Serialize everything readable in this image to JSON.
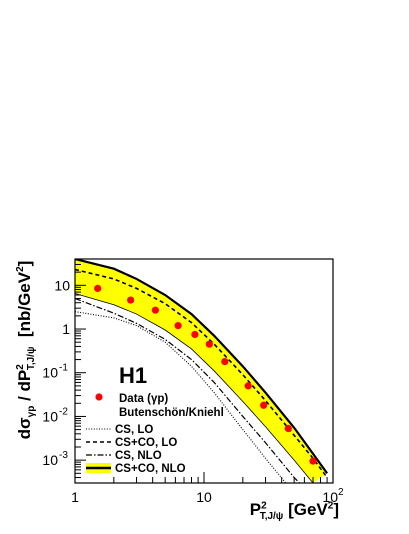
{
  "chart_data": {
    "type": "line",
    "xscale": "log",
    "yscale": "log",
    "xlim": [
      1,
      100
    ],
    "ylim": [
      0.0003,
      40
    ],
    "xticks": [
      {
        "value": 1,
        "label": "1"
      },
      {
        "value": 10,
        "label": "10"
      },
      {
        "value": 100,
        "label": "10",
        "sup": "2"
      }
    ],
    "yticks": [
      {
        "value": 0.001,
        "label": "10",
        "sup": "-3"
      },
      {
        "value": 0.01,
        "label": "10",
        "sup": "-2"
      },
      {
        "value": 0.1,
        "label": "10",
        "sup": "-1"
      },
      {
        "value": 1,
        "label": "1"
      },
      {
        "value": 10,
        "label": "10"
      }
    ],
    "xlabel": {
      "main": "P",
      "sup": "2",
      "sub": "T,J/ψ",
      "unit": "[GeV",
      "unit_sup": "2",
      "unit_end": "]"
    },
    "ylabel": {
      "main": "dσ",
      "sub1": "γp",
      "mid": " / dP",
      "sup": "2",
      "sub2": "T,J/ψ",
      "unit": "  [nb/GeV",
      "unit_sup": "2",
      "unit_end": "]"
    },
    "experiment_label": "H1",
    "legend": {
      "data_label": "Data (γp)",
      "theory_header": "Butenschön/Kniehl",
      "entries": [
        "CS, LO",
        "CS+CO, LO",
        "CS, NLO",
        "CS+CO, NLO"
      ]
    },
    "colors": {
      "band": "#ffff00",
      "marker": "#ff0000",
      "line": "#000000"
    },
    "data_points": [
      {
        "x": 1.5,
        "y": 8.5
      },
      {
        "x": 2.7,
        "y": 4.6
      },
      {
        "x": 4.2,
        "y": 2.7
      },
      {
        "x": 6.3,
        "y": 1.2
      },
      {
        "x": 8.5,
        "y": 0.75
      },
      {
        "x": 11,
        "y": 0.45
      },
      {
        "x": 14.5,
        "y": 0.18
      },
      {
        "x": 22,
        "y": 0.05
      },
      {
        "x": 29,
        "y": 0.018
      },
      {
        "x": 45,
        "y": 0.0053
      },
      {
        "x": 70,
        "y": 0.00095
      }
    ],
    "curves": {
      "band_upper": [
        [
          1,
          40
        ],
        [
          2,
          24
        ],
        [
          3,
          14
        ],
        [
          5,
          6
        ],
        [
          8,
          2.2
        ],
        [
          12,
          0.7
        ],
        [
          20,
          0.14
        ],
        [
          30,
          0.035
        ],
        [
          50,
          0.0055
        ],
        [
          70,
          0.0014
        ],
        [
          90,
          0.0005
        ]
      ],
      "band_lower": [
        [
          1,
          6.5
        ],
        [
          2,
          3.6
        ],
        [
          3,
          2.2
        ],
        [
          5,
          0.95
        ],
        [
          8,
          0.35
        ],
        [
          12,
          0.11
        ],
        [
          20,
          0.022
        ],
        [
          30,
          0.0058
        ],
        [
          50,
          0.001
        ],
        [
          70,
          0.0003
        ]
      ],
      "cs_co_lo": [
        [
          1,
          23
        ],
        [
          2,
          14
        ],
        [
          3,
          8.5
        ],
        [
          5,
          3.8
        ],
        [
          8,
          1.4
        ],
        [
          12,
          0.45
        ],
        [
          20,
          0.09
        ],
        [
          30,
          0.023
        ],
        [
          50,
          0.0037
        ],
        [
          70,
          0.0011
        ],
        [
          90,
          0.0004
        ]
      ],
      "cs_lo": [
        [
          1,
          2.5
        ],
        [
          2,
          1.8
        ],
        [
          3,
          1.2
        ],
        [
          5,
          0.5
        ],
        [
          8,
          0.14
        ],
        [
          12,
          0.035
        ],
        [
          20,
          0.005
        ],
        [
          30,
          0.0011
        ],
        [
          43,
          0.0003
        ]
      ],
      "cs_nlo": [
        [
          1,
          5
        ],
        [
          2,
          2.3
        ],
        [
          3,
          1.35
        ],
        [
          5,
          0.58
        ],
        [
          8,
          0.2
        ],
        [
          12,
          0.06
        ],
        [
          20,
          0.01
        ],
        [
          30,
          0.0025
        ],
        [
          50,
          0.0004
        ],
        [
          55,
          0.0003
        ]
      ]
    }
  }
}
